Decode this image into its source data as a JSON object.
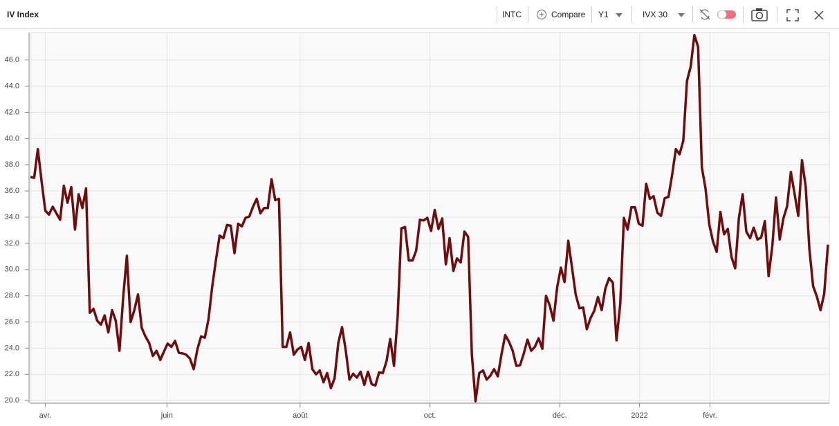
{
  "toolbar": {
    "symbol": "INTC",
    "compare": "Compare",
    "period": "Y1",
    "measure": "IVX 30"
  },
  "chart_data": {
    "type": "line",
    "title": "IV Index",
    "x": [
      0,
      1,
      2,
      3,
      4,
      5,
      6,
      7,
      8,
      9,
      10,
      11,
      12,
      13,
      14,
      15,
      16,
      17,
      18,
      19,
      20,
      21,
      22,
      23,
      24,
      25,
      26,
      27,
      28,
      29,
      30,
      31,
      32,
      33,
      34,
      35,
      36,
      37,
      38,
      39,
      40,
      41,
      42,
      43,
      44,
      45,
      46,
      47,
      48,
      49,
      50,
      51,
      52,
      53,
      54,
      55,
      56,
      57,
      58,
      59,
      60,
      61,
      62,
      63,
      64,
      65,
      66,
      67,
      68,
      69,
      70,
      71,
      72,
      73,
      74,
      75,
      76,
      77,
      78,
      79,
      80,
      81,
      82,
      83,
      84,
      85,
      86,
      87,
      88,
      89,
      90,
      91,
      92,
      93,
      94,
      95,
      96,
      97,
      98,
      99,
      100,
      101,
      102,
      103,
      104,
      105,
      106,
      107,
      108,
      109,
      110,
      111,
      112,
      113,
      114,
      115,
      116,
      117,
      118,
      119,
      120,
      121,
      122,
      123,
      124,
      125,
      126,
      127,
      128,
      129,
      130,
      131,
      132,
      133,
      134,
      135,
      136,
      137,
      138,
      139,
      140,
      141,
      142,
      143,
      144,
      145,
      146,
      147,
      148,
      149,
      150,
      151,
      152,
      153,
      154,
      155,
      156,
      157,
      158,
      159,
      160,
      161,
      162,
      163,
      164,
      165,
      166,
      167,
      168,
      169,
      170,
      171,
      172,
      173,
      174,
      175,
      176,
      177,
      178,
      179,
      180,
      181,
      182,
      183,
      184,
      185,
      186,
      187,
      188,
      189,
      190,
      191,
      192,
      193,
      194,
      195,
      196,
      197,
      198,
      199,
      200,
      201,
      202,
      203,
      204,
      205,
      206,
      207,
      208,
      209,
      210,
      211,
      212,
      213,
      214,
      215
    ],
    "series": [
      {
        "name": "IVX 30",
        "color": "#6e0d0d",
        "values": [
          37.07,
          37.0,
          39.2,
          36.75,
          34.5,
          34.2,
          34.8,
          34.3,
          33.8,
          36.4,
          35.1,
          36.3,
          33.05,
          35.75,
          34.7,
          36.2,
          26.7,
          27.0,
          26.1,
          25.8,
          26.5,
          25.2,
          26.9,
          26.1,
          23.8,
          27.9,
          31.05,
          26.0,
          26.9,
          28.1,
          25.55,
          24.9,
          24.4,
          23.4,
          23.8,
          23.1,
          23.75,
          24.35,
          24.1,
          24.55,
          23.65,
          23.6,
          23.5,
          23.2,
          22.4,
          23.9,
          24.9,
          24.8,
          26.2,
          28.7,
          30.7,
          32.6,
          32.4,
          33.4,
          33.35,
          31.25,
          33.5,
          33.3,
          33.95,
          34.05,
          34.8,
          35.4,
          34.3,
          34.7,
          34.7,
          36.9,
          35.3,
          35.4,
          24.1,
          24.1,
          25.2,
          23.5,
          23.9,
          24.1,
          23.1,
          24.4,
          22.4,
          22.0,
          22.3,
          21.4,
          22.1,
          20.95,
          21.7,
          24.4,
          25.6,
          23.85,
          21.6,
          22.05,
          21.75,
          22.2,
          21.2,
          22.2,
          21.25,
          21.15,
          22.15,
          22.1,
          23.0,
          24.7,
          22.65,
          26.4,
          33.15,
          33.25,
          30.7,
          30.7,
          31.45,
          33.8,
          33.75,
          33.95,
          32.95,
          34.55,
          33.1,
          33.9,
          30.4,
          32.4,
          29.9,
          30.85,
          30.55,
          32.9,
          32.5,
          23.5,
          19.95,
          22.1,
          22.3,
          21.6,
          21.9,
          22.4,
          21.85,
          23.55,
          25.0,
          24.5,
          23.8,
          22.65,
          22.7,
          23.6,
          24.65,
          23.8,
          24.1,
          24.75,
          23.95,
          28.0,
          27.25,
          26.1,
          28.65,
          30.15,
          29.05,
          32.2,
          30.15,
          28.1,
          27.05,
          27.1,
          25.45,
          26.3,
          26.85,
          27.9,
          26.9,
          28.55,
          29.35,
          29.0,
          24.6,
          27.35,
          33.95,
          33.05,
          34.75,
          34.75,
          33.5,
          33.35,
          36.55,
          35.4,
          35.6,
          34.35,
          34.1,
          35.45,
          35.55,
          37.25,
          39.2,
          38.8,
          39.85,
          44.4,
          45.5,
          47.9,
          47.0,
          37.8,
          36.2,
          33.45,
          32.15,
          31.35,
          34.4,
          32.7,
          33.1,
          30.95,
          30.1,
          33.95,
          35.75,
          32.9,
          32.4,
          33.2,
          32.3,
          32.45,
          33.7,
          29.5,
          31.8,
          35.5,
          32.3,
          33.9,
          34.85,
          37.45,
          35.8,
          34.1,
          38.35,
          36.35,
          31.55,
          28.75,
          27.95,
          26.9,
          28.15,
          31.9
        ]
      }
    ],
    "xlim": [
      0,
      215
    ],
    "xticks": [
      {
        "value": 4,
        "label": "avr."
      },
      {
        "value": 36.8,
        "label": "juin"
      },
      {
        "value": 72.7,
        "label": "août"
      },
      {
        "value": 107.7,
        "label": "oct."
      },
      {
        "value": 142.7,
        "label": "déc."
      },
      {
        "value": 164.2,
        "label": "2022"
      },
      {
        "value": 183.2,
        "label": "févr."
      }
    ],
    "ylim": [
      19.8,
      48.1
    ],
    "yticks": [
      {
        "value": 20,
        "label": "20.0"
      },
      {
        "value": 22,
        "label": "22.0"
      },
      {
        "value": 24,
        "label": "24.0"
      },
      {
        "value": 26,
        "label": "26.0"
      },
      {
        "value": 28,
        "label": "28.0"
      },
      {
        "value": 30,
        "label": "30.0"
      },
      {
        "value": 32,
        "label": "32.0"
      },
      {
        "value": 34,
        "label": "34.0"
      },
      {
        "value": 36,
        "label": "36.0"
      },
      {
        "value": 38,
        "label": "38.0"
      },
      {
        "value": 40,
        "label": "40.0"
      },
      {
        "value": 42,
        "label": "42.0"
      },
      {
        "value": 44,
        "label": "44.0"
      },
      {
        "value": 46,
        "label": "46.0"
      }
    ],
    "grid": true
  }
}
